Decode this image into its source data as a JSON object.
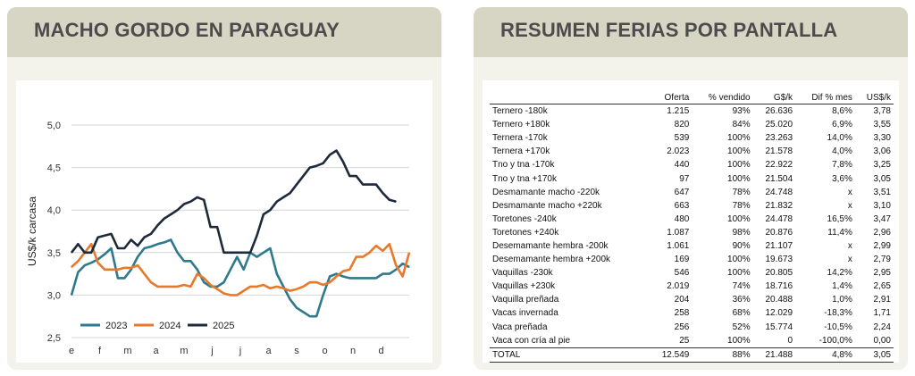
{
  "left_panel": {
    "title": "MACHO GORDO EN PARAGUAY"
  },
  "right_panel": {
    "title": "RESUMEN FERIAS POR PANTALLA"
  },
  "chart_data": {
    "type": "line",
    "title": "",
    "xlabel": "",
    "ylabel": "US$/k carcasa",
    "ylim": [
      2.5,
      5.0
    ],
    "yticks": [
      "2,5",
      "3,0",
      "3,5",
      "4,0",
      "4,5",
      "5,0"
    ],
    "month_labels": [
      "e",
      "f",
      "m",
      "a",
      "m",
      "j",
      "j",
      "a",
      "s",
      "o",
      "n",
      "d"
    ],
    "x_unit": "week",
    "legend_position": "bottom-left",
    "grid": true,
    "series": [
      {
        "name": "2023",
        "color": "#2e7a8c",
        "x": [
          0,
          1,
          2,
          3,
          4,
          5,
          6,
          7,
          8,
          9,
          10,
          11,
          12,
          13,
          14,
          15,
          16,
          17,
          18,
          19,
          20,
          21,
          22,
          23,
          24,
          25,
          26,
          27,
          28,
          29,
          30,
          31,
          32,
          33,
          34,
          35,
          36,
          37,
          38,
          39,
          40,
          41,
          42,
          43,
          44,
          45,
          46,
          47,
          48,
          49,
          50,
          51
        ],
        "y": [
          3.0,
          3.27,
          3.35,
          3.38,
          3.42,
          3.48,
          3.55,
          3.2,
          3.2,
          3.3,
          3.45,
          3.55,
          3.57,
          3.6,
          3.62,
          3.65,
          3.5,
          3.4,
          3.4,
          3.3,
          3.15,
          3.1,
          3.1,
          3.15,
          3.3,
          3.45,
          3.3,
          3.5,
          3.45,
          3.5,
          3.55,
          3.25,
          3.1,
          2.95,
          2.85,
          2.8,
          2.75,
          2.75,
          3.0,
          3.22,
          3.25,
          3.22,
          3.2,
          3.2,
          3.2,
          3.2,
          3.2,
          3.25,
          3.25,
          3.3,
          3.37,
          3.33
        ]
      },
      {
        "name": "2024",
        "color": "#e8792c",
        "x": [
          0,
          1,
          2,
          3,
          4,
          5,
          6,
          7,
          8,
          9,
          10,
          11,
          12,
          13,
          14,
          15,
          16,
          17,
          18,
          19,
          20,
          21,
          22,
          23,
          24,
          25,
          26,
          27,
          28,
          29,
          30,
          31,
          32,
          33,
          34,
          35,
          36,
          37,
          38,
          39,
          40,
          41,
          42,
          43,
          44,
          45,
          46,
          47,
          48,
          49,
          50,
          51
        ],
        "y": [
          3.33,
          3.4,
          3.5,
          3.6,
          3.38,
          3.3,
          3.3,
          3.3,
          3.32,
          3.32,
          3.35,
          3.25,
          3.15,
          3.1,
          3.1,
          3.1,
          3.1,
          3.12,
          3.1,
          3.25,
          3.2,
          3.12,
          3.07,
          3.02,
          3.0,
          3.0,
          3.05,
          3.1,
          3.1,
          3.12,
          3.08,
          3.1,
          3.08,
          3.05,
          3.07,
          3.1,
          3.15,
          3.15,
          3.12,
          3.15,
          3.22,
          3.28,
          3.3,
          3.45,
          3.45,
          3.5,
          3.58,
          3.52,
          3.6,
          3.35,
          3.22,
          3.5
        ]
      },
      {
        "name": "2025",
        "color": "#1d2a3a",
        "x": [
          0,
          1,
          2,
          3,
          4,
          5,
          6,
          7,
          8,
          9,
          10,
          11,
          12,
          13,
          14,
          15,
          16,
          17,
          18,
          19,
          20,
          21,
          22,
          23,
          24,
          25,
          26,
          27,
          28,
          29,
          30,
          31,
          32,
          33,
          34,
          35,
          36,
          37,
          38,
          39,
          40,
          41,
          42,
          43,
          44,
          45,
          46,
          47,
          48,
          49
        ],
        "y": [
          3.5,
          3.6,
          3.5,
          3.5,
          3.68,
          3.7,
          3.72,
          3.55,
          3.55,
          3.65,
          3.58,
          3.68,
          3.72,
          3.82,
          3.9,
          3.95,
          4.0,
          4.07,
          4.1,
          4.15,
          4.12,
          3.8,
          3.8,
          3.5,
          3.5,
          3.5,
          3.5,
          3.5,
          3.7,
          3.95,
          4.0,
          4.1,
          4.15,
          4.2,
          4.3,
          4.4,
          4.5,
          4.52,
          4.55,
          4.65,
          4.7,
          4.57,
          4.4,
          4.4,
          4.3,
          4.3,
          4.3,
          4.2,
          4.12,
          4.1
        ]
      }
    ]
  },
  "summary_table": {
    "columns": [
      "",
      "Oferta",
      "% vendido",
      "G$/k",
      "Dif % mes",
      "US$/k"
    ],
    "rows": [
      [
        "Ternero -180k",
        "1.215",
        "93%",
        "26.636",
        "8,6%",
        "3,78"
      ],
      [
        "Ternero +180k",
        "820",
        "84%",
        "25.020",
        "6,9%",
        "3,55"
      ],
      [
        "Ternera -170k",
        "539",
        "100%",
        "23.263",
        "14,0%",
        "3,30"
      ],
      [
        "Ternera +170k",
        "2.023",
        "100%",
        "21.578",
        "4,0%",
        "3,06"
      ],
      [
        "Tno y tna -170k",
        "440",
        "100%",
        "22.922",
        "7,8%",
        "3,25"
      ],
      [
        "Tno y tna +170k",
        "97",
        "100%",
        "21.504",
        "3,6%",
        "3,05"
      ],
      [
        "Desmamante macho -220k",
        "647",
        "78%",
        "24.748",
        "x",
        "3,51"
      ],
      [
        "Desmamante macho +220k",
        "663",
        "78%",
        "21.832",
        "x",
        "3,10"
      ],
      [
        "Toretones -240k",
        "480",
        "100%",
        "24.478",
        "16,5%",
        "3,47"
      ],
      [
        "Toretones +240k",
        "1.087",
        "98%",
        "20.876",
        "11,4%",
        "2,96"
      ],
      [
        "Desemamante hembra -200k",
        "1.061",
        "90%",
        "21.107",
        "x",
        "2,99"
      ],
      [
        "Desemamante hembra +200k",
        "169",
        "100%",
        "19.673",
        "x",
        "2,79"
      ],
      [
        "Vaquillas -230k",
        "546",
        "100%",
        "20.805",
        "14,2%",
        "2,95"
      ],
      [
        "Vaquillas +230k",
        "2.019",
        "74%",
        "18.716",
        "1,4%",
        "2,65"
      ],
      [
        "Vaquilla preñada",
        "204",
        "36%",
        "20.488",
        "1,0%",
        "2,91"
      ],
      [
        "Vacas invernada",
        "258",
        "68%",
        "12.029",
        "-18,3%",
        "1,71"
      ],
      [
        "Vaca preñada",
        "256",
        "52%",
        "15.774",
        "-10,5%",
        "2,24"
      ],
      [
        "Vaca con cría al pie",
        "25",
        "100%",
        "0",
        "-100,0%",
        "0,00"
      ]
    ],
    "total": [
      "TOTAL",
      "12.549",
      "88%",
      "21.488",
      "4,8%",
      "3,05"
    ]
  }
}
